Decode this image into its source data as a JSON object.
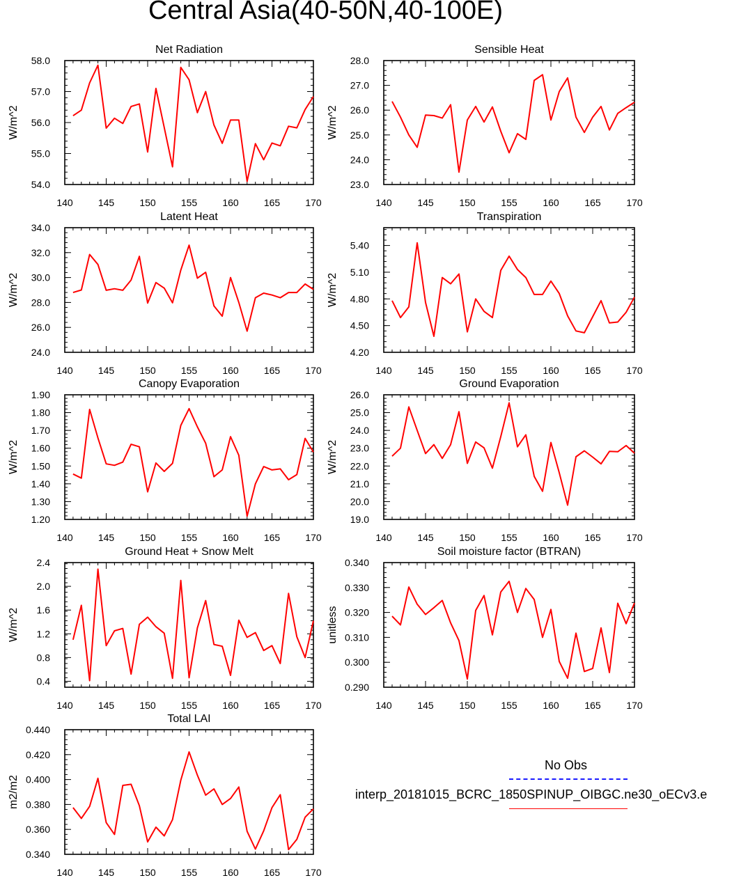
{
  "title": "Central Asia(40-50N,40-100E)",
  "colors": {
    "model": "#ff0000",
    "obs": "#1a1aff",
    "axis": "#000000"
  },
  "legend": {
    "obs_label": "No Obs",
    "model_label": "interp_20181015_BCRC_1850SPINUP_OIBGC.ne30_oECv3.e"
  },
  "chart_data": [
    {
      "type": "line",
      "title": "Net Radiation",
      "ylabel": "W/m^2",
      "xlim": [
        140,
        170
      ],
      "ylim": [
        54.0,
        58.0
      ],
      "xticks": [
        "140",
        "145",
        "150",
        "155",
        "160",
        "165",
        "170"
      ],
      "yticks": [
        "54.0",
        "55.0",
        "56.0",
        "57.0",
        "58.0"
      ],
      "x": [
        141,
        142,
        143,
        144,
        145,
        146,
        147,
        148,
        149,
        150,
        151,
        152,
        153,
        154,
        155,
        156,
        157,
        158,
        159,
        160,
        161,
        162,
        163,
        164,
        165,
        166,
        167,
        168,
        169,
        170
      ],
      "series": [
        {
          "name": "model",
          "values": [
            56.22,
            56.4,
            57.28,
            57.85,
            55.82,
            56.14,
            55.97,
            56.52,
            56.6,
            55.05,
            57.1,
            55.84,
            54.57,
            57.78,
            57.38,
            56.32,
            57.0,
            55.92,
            55.33,
            56.08,
            56.08,
            54.1,
            55.32,
            54.8,
            55.34,
            55.25,
            55.88,
            55.83,
            56.42,
            56.84
          ]
        }
      ]
    },
    {
      "type": "line",
      "title": "Sensible Heat",
      "ylabel": "W/m^2",
      "xlim": [
        140,
        170
      ],
      "ylim": [
        23.0,
        28.0
      ],
      "xticks": [
        "140",
        "145",
        "150",
        "155",
        "160",
        "165",
        "170"
      ],
      "yticks": [
        "23.0",
        "24.0",
        "25.0",
        "26.0",
        "27.0",
        "28.0"
      ],
      "x": [
        141,
        142,
        143,
        144,
        145,
        146,
        147,
        148,
        149,
        150,
        151,
        152,
        153,
        154,
        155,
        156,
        157,
        158,
        159,
        160,
        161,
        162,
        163,
        164,
        165,
        166,
        167,
        168,
        169,
        170
      ],
      "series": [
        {
          "name": "model",
          "values": [
            26.35,
            25.72,
            25.0,
            24.5,
            25.8,
            25.78,
            25.68,
            26.22,
            23.5,
            25.6,
            26.15,
            25.52,
            26.13,
            25.15,
            24.28,
            25.05,
            24.82,
            27.2,
            27.43,
            25.6,
            26.75,
            27.3,
            25.72,
            25.1,
            25.72,
            26.15,
            25.2,
            25.87,
            26.1,
            26.32
          ]
        }
      ]
    },
    {
      "type": "line",
      "title": "Latent Heat",
      "ylabel": "W/m^2",
      "xlim": [
        140,
        170
      ],
      "ylim": [
        24.0,
        34.0
      ],
      "xticks": [
        "140",
        "145",
        "150",
        "155",
        "160",
        "165",
        "170"
      ],
      "yticks": [
        "24.0",
        "26.0",
        "28.0",
        "30.0",
        "32.0",
        "34.0"
      ],
      "x": [
        141,
        142,
        143,
        144,
        145,
        146,
        147,
        148,
        149,
        150,
        151,
        152,
        153,
        154,
        155,
        156,
        157,
        158,
        159,
        160,
        161,
        162,
        163,
        164,
        165,
        166,
        167,
        168,
        169,
        170
      ],
      "series": [
        {
          "name": "model",
          "values": [
            28.8,
            29.0,
            31.85,
            31.05,
            28.98,
            29.1,
            28.98,
            29.8,
            31.7,
            27.95,
            29.6,
            29.15,
            27.97,
            30.6,
            32.6,
            29.95,
            30.42,
            27.72,
            26.9,
            30.0,
            28.0,
            25.7,
            28.38,
            28.75,
            28.6,
            28.38,
            28.8,
            28.8,
            29.48,
            29.05
          ]
        }
      ]
    },
    {
      "type": "line",
      "title": "Transpiration",
      "ylabel": "W/m^2",
      "xlim": [
        140,
        170
      ],
      "ylim": [
        4.2,
        5.6
      ],
      "xticks": [
        "140",
        "145",
        "150",
        "155",
        "160",
        "165",
        "170"
      ],
      "yticks": [
        "4.20",
        "4.50",
        "4.80",
        "5.10",
        "5.40"
      ],
      "x": [
        141,
        142,
        143,
        144,
        145,
        146,
        147,
        148,
        149,
        150,
        151,
        152,
        153,
        154,
        155,
        156,
        157,
        158,
        159,
        160,
        161,
        162,
        163,
        164,
        165,
        166,
        167,
        168,
        169,
        170
      ],
      "series": [
        {
          "name": "model",
          "values": [
            4.78,
            4.59,
            4.71,
            5.43,
            4.76,
            4.38,
            5.04,
            4.97,
            5.08,
            4.43,
            4.8,
            4.66,
            4.59,
            5.12,
            5.28,
            5.13,
            5.04,
            4.85,
            4.85,
            5.0,
            4.86,
            4.61,
            4.44,
            4.42,
            4.6,
            4.78,
            4.53,
            4.54,
            4.65,
            4.82
          ]
        }
      ]
    },
    {
      "type": "line",
      "title": "Canopy Evaporation",
      "ylabel": "W/m^2",
      "xlim": [
        140,
        170
      ],
      "ylim": [
        1.2,
        1.9
      ],
      "xticks": [
        "140",
        "145",
        "150",
        "155",
        "160",
        "165",
        "170"
      ],
      "yticks": [
        "1.20",
        "1.30",
        "1.40",
        "1.50",
        "1.60",
        "1.70",
        "1.80",
        "1.90"
      ],
      "x": [
        141,
        142,
        143,
        144,
        145,
        146,
        147,
        148,
        149,
        150,
        151,
        152,
        153,
        154,
        155,
        156,
        157,
        158,
        159,
        160,
        161,
        162,
        163,
        164,
        165,
        166,
        167,
        168,
        169,
        170
      ],
      "series": [
        {
          "name": "model",
          "values": [
            1.455,
            1.432,
            1.818,
            1.658,
            1.512,
            1.504,
            1.522,
            1.622,
            1.608,
            1.355,
            1.517,
            1.47,
            1.515,
            1.728,
            1.822,
            1.72,
            1.628,
            1.44,
            1.478,
            1.665,
            1.56,
            1.218,
            1.4,
            1.497,
            1.478,
            1.484,
            1.423,
            1.452,
            1.655,
            1.578
          ]
        }
      ]
    },
    {
      "type": "line",
      "title": "Ground Evaporation",
      "ylabel": "W/m^2",
      "xlim": [
        140,
        170
      ],
      "ylim": [
        19.0,
        26.0
      ],
      "xticks": [
        "140",
        "145",
        "150",
        "155",
        "160",
        "165",
        "170"
      ],
      "yticks": [
        "19.0",
        "20.0",
        "21.0",
        "22.0",
        "23.0",
        "24.0",
        "25.0",
        "26.0"
      ],
      "x": [
        141,
        142,
        143,
        144,
        145,
        146,
        147,
        148,
        149,
        150,
        151,
        152,
        153,
        154,
        155,
        156,
        157,
        158,
        159,
        160,
        161,
        162,
        163,
        164,
        165,
        166,
        167,
        168,
        169,
        170
      ],
      "series": [
        {
          "name": "model",
          "values": [
            22.55,
            23.0,
            25.32,
            24.0,
            22.7,
            23.2,
            22.43,
            23.2,
            25.05,
            22.15,
            23.35,
            23.02,
            21.88,
            23.65,
            25.55,
            23.08,
            23.75,
            21.42,
            20.58,
            23.32,
            21.62,
            19.8,
            22.52,
            22.85,
            22.5,
            22.12,
            22.82,
            22.8,
            23.15,
            22.72
          ]
        }
      ]
    },
    {
      "type": "line",
      "title": "Ground Heat + Snow Melt",
      "ylabel": "W/m^2",
      "xlim": [
        140,
        170
      ],
      "ylim": [
        0.3,
        2.4
      ],
      "xticks": [
        "140",
        "145",
        "150",
        "155",
        "160",
        "165",
        "170"
      ],
      "yticks": [
        "0.4",
        "0.8",
        "1.2",
        "1.6",
        "2.0",
        "2.4"
      ],
      "x": [
        141,
        142,
        143,
        144,
        145,
        146,
        147,
        148,
        149,
        150,
        151,
        152,
        153,
        154,
        155,
        156,
        157,
        158,
        159,
        160,
        161,
        162,
        163,
        164,
        165,
        166,
        167,
        168,
        169,
        170
      ],
      "series": [
        {
          "name": "model",
          "values": [
            1.1,
            1.68,
            0.41,
            2.29,
            1.0,
            1.25,
            1.29,
            0.52,
            1.36,
            1.48,
            1.32,
            1.21,
            0.45,
            2.1,
            0.46,
            1.3,
            1.76,
            1.02,
            0.99,
            0.5,
            1.43,
            1.14,
            1.22,
            0.92,
            1.0,
            0.7,
            1.88,
            1.15,
            0.8,
            1.42
          ]
        }
      ]
    },
    {
      "type": "line",
      "title": "Soil moisture factor (BTRAN)",
      "ylabel": "unitless",
      "xlim": [
        140,
        170
      ],
      "ylim": [
        0.29,
        0.34
      ],
      "xticks": [
        "140",
        "145",
        "150",
        "155",
        "160",
        "165",
        "170"
      ],
      "yticks": [
        "0.290",
        "0.300",
        "0.310",
        "0.320",
        "0.330",
        "0.340"
      ],
      "x": [
        141,
        142,
        143,
        144,
        145,
        146,
        147,
        148,
        149,
        150,
        151,
        152,
        153,
        154,
        155,
        156,
        157,
        158,
        159,
        160,
        161,
        162,
        163,
        164,
        165,
        166,
        167,
        168,
        169,
        170
      ],
      "series": [
        {
          "name": "model",
          "values": [
            0.3185,
            0.315,
            0.3302,
            0.3233,
            0.3192,
            0.3219,
            0.3248,
            0.3158,
            0.3087,
            0.2933,
            0.3208,
            0.3268,
            0.311,
            0.3282,
            0.3325,
            0.32,
            0.3296,
            0.3252,
            0.31,
            0.3212,
            0.3003,
            0.2936,
            0.3117,
            0.2963,
            0.2975,
            0.3138,
            0.2959,
            0.3237,
            0.3155,
            0.3238
          ]
        }
      ]
    },
    {
      "type": "line",
      "title": "Total LAI",
      "ylabel": "m2/m2",
      "xlim": [
        140,
        170
      ],
      "ylim": [
        0.34,
        0.44
      ],
      "xticks": [
        "140",
        "145",
        "150",
        "155",
        "160",
        "165",
        "170"
      ],
      "yticks": [
        "0.340",
        "0.360",
        "0.380",
        "0.400",
        "0.420",
        "0.440"
      ],
      "x": [
        141,
        142,
        143,
        144,
        145,
        146,
        147,
        148,
        149,
        150,
        151,
        152,
        153,
        154,
        155,
        156,
        157,
        158,
        159,
        160,
        161,
        162,
        163,
        164,
        165,
        166,
        167,
        168,
        169,
        170
      ],
      "series": [
        {
          "name": "model",
          "values": [
            0.3775,
            0.3688,
            0.3785,
            0.401,
            0.3655,
            0.356,
            0.3953,
            0.3962,
            0.379,
            0.35,
            0.3618,
            0.3548,
            0.3678,
            0.3995,
            0.4222,
            0.4035,
            0.3875,
            0.3925,
            0.38,
            0.3848,
            0.394,
            0.3585,
            0.3442,
            0.3588,
            0.3775,
            0.3878,
            0.3438,
            0.352,
            0.3698,
            0.3765
          ]
        }
      ]
    }
  ]
}
